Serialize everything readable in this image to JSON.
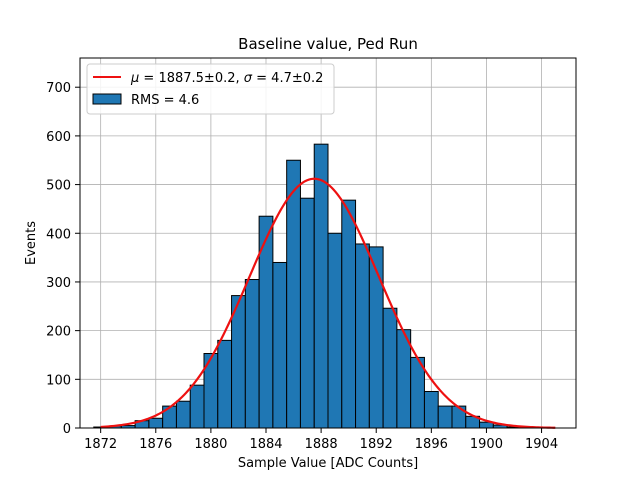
{
  "chart_data": {
    "type": "histogram",
    "title": "Baseline value, Ped Run",
    "xlabel": "Sample Value [ADC Counts]",
    "ylabel": "Events",
    "xlim": [
      1870.5,
      1906.5
    ],
    "ylim": [
      0,
      760
    ],
    "xticks": [
      1872,
      1876,
      1880,
      1884,
      1888,
      1892,
      1896,
      1900,
      1904
    ],
    "yticks": [
      0,
      100,
      200,
      300,
      400,
      500,
      600,
      700
    ],
    "grid": true,
    "legend_position": "top-left",
    "bin_width": 1,
    "bars": [
      {
        "x": 1872,
        "value": 2
      },
      {
        "x": 1873,
        "value": 4
      },
      {
        "x": 1874,
        "value": 5
      },
      {
        "x": 1875,
        "value": 15
      },
      {
        "x": 1876,
        "value": 20
      },
      {
        "x": 1877,
        "value": 45
      },
      {
        "x": 1878,
        "value": 55
      },
      {
        "x": 1879,
        "value": 88
      },
      {
        "x": 1880,
        "value": 153
      },
      {
        "x": 1881,
        "value": 180
      },
      {
        "x": 1882,
        "value": 272
      },
      {
        "x": 1883,
        "value": 305
      },
      {
        "x": 1884,
        "value": 435
      },
      {
        "x": 1885,
        "value": 340
      },
      {
        "x": 1886,
        "value": 550
      },
      {
        "x": 1887,
        "value": 472
      },
      {
        "x": 1888,
        "value": 583
      },
      {
        "x": 1889,
        "value": 400
      },
      {
        "x": 1890,
        "value": 468
      },
      {
        "x": 1891,
        "value": 378
      },
      {
        "x": 1892,
        "value": 372
      },
      {
        "x": 1893,
        "value": 246
      },
      {
        "x": 1894,
        "value": 202
      },
      {
        "x": 1895,
        "value": 145
      },
      {
        "x": 1896,
        "value": 75
      },
      {
        "x": 1897,
        "value": 45
      },
      {
        "x": 1898,
        "value": 45
      },
      {
        "x": 1899,
        "value": 24
      },
      {
        "x": 1900,
        "value": 12
      },
      {
        "x": 1901,
        "value": 6
      },
      {
        "x": 1902,
        "value": 2
      }
    ],
    "fit": {
      "function": "gaussian",
      "mu": 1887.5,
      "sigma": 4.7,
      "amplitude": 512,
      "x_range": [
        1872,
        1905
      ]
    },
    "series": [
      {
        "name": "$\\mu = 1887.5 \\pm 0.2$, $\\sigma = 4.7 \\pm 0.2$",
        "kind": "line",
        "color": "#e41a1c"
      },
      {
        "name": "RMS = 4.6",
        "kind": "bar",
        "color": "#1f77b4"
      }
    ],
    "legend": {
      "fit_prefix": "μ",
      "fit_mid": " = 1887.5±0.2, ",
      "sigma_symbol": "σ",
      "fit_suffix": " = 4.7±0.2",
      "hist_label": "RMS = 4.6"
    },
    "colors": {
      "bar_fill": "#1f77b4",
      "bar_edge": "#000000",
      "fit_line": "#ee1111",
      "grid": "#b0b0b0"
    }
  }
}
